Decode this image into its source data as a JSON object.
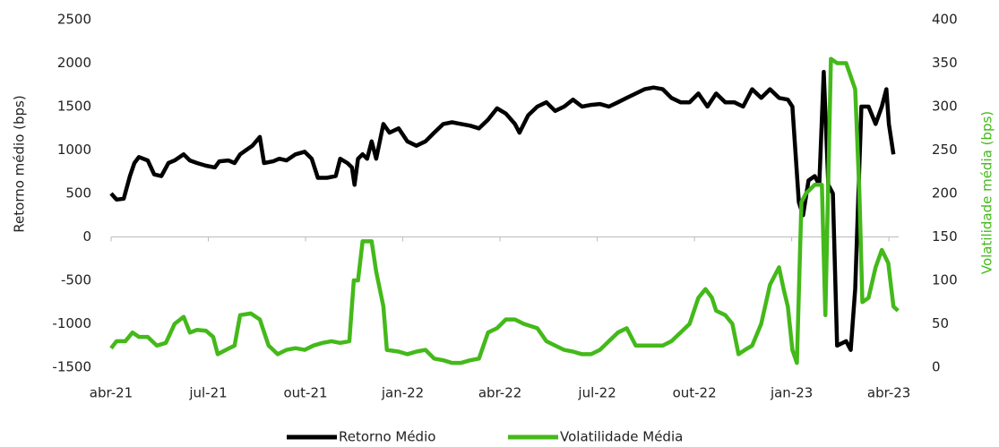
{
  "chart_data": {
    "type": "line",
    "y_label": "Retorno médio (bps)",
    "y2_label": "Volatilidade média (bps)",
    "xlim": [
      0,
      24.3
    ],
    "xticks": [
      {
        "value": 0,
        "label": "abr-21"
      },
      {
        "value": 3,
        "label": "jul-21"
      },
      {
        "value": 6,
        "label": "out-21"
      },
      {
        "value": 9,
        "label": "jan-22"
      },
      {
        "value": 12,
        "label": "abr-22"
      },
      {
        "value": 15,
        "label": "jul-22"
      },
      {
        "value": 18,
        "label": "out-22"
      },
      {
        "value": 21,
        "label": "jan-23"
      },
      {
        "value": 24,
        "label": "abr-23"
      }
    ],
    "ylim": [
      -1500,
      2500
    ],
    "yticks": [
      -1500,
      -1000,
      -500,
      0,
      500,
      1000,
      1500,
      2000,
      2500
    ],
    "y2lim": [
      0,
      400
    ],
    "y2ticks": [
      0,
      50,
      100,
      150,
      200,
      250,
      300,
      350,
      400
    ],
    "legend": "bottom",
    "series": [
      {
        "name": "Retorno Médio",
        "color": "#000000",
        "axis": "y",
        "x": [
          0,
          0.17,
          0.39,
          0.58,
          0.72,
          0.86,
          1.13,
          1.33,
          1.55,
          1.77,
          1.96,
          2.24,
          2.43,
          2.65,
          2.93,
          3.2,
          3.34,
          3.62,
          3.81,
          3.98,
          4.17,
          4.36,
          4.59,
          4.72,
          5.0,
          5.19,
          5.41,
          5.69,
          5.97,
          6.19,
          6.38,
          6.66,
          6.93,
          7.07,
          7.29,
          7.43,
          7.51,
          7.62,
          7.76,
          7.9,
          8.04,
          8.18,
          8.4,
          8.59,
          8.87,
          9.14,
          9.42,
          9.7,
          9.97,
          10.25,
          10.52,
          10.8,
          11.08,
          11.35,
          11.63,
          11.91,
          12.18,
          12.46,
          12.6,
          12.87,
          13.15,
          13.43,
          13.7,
          13.98,
          14.25,
          14.53,
          14.81,
          15.08,
          15.36,
          15.64,
          15.91,
          16.19,
          16.46,
          16.74,
          17.02,
          17.29,
          17.57,
          17.85,
          18.12,
          18.4,
          18.67,
          18.95,
          19.23,
          19.5,
          19.78,
          20.06,
          20.33,
          20.61,
          20.88,
          21.02,
          21.22,
          21.35,
          21.52,
          21.71,
          21.85,
          21.99,
          22.13,
          22.27,
          22.4,
          22.68,
          22.82,
          22.96,
          23.15,
          23.37,
          23.59,
          23.78,
          23.92,
          24.0,
          24.14
        ],
        "values": [
          500,
          430,
          440,
          700,
          850,
          920,
          880,
          720,
          700,
          850,
          880,
          950,
          880,
          850,
          820,
          800,
          870,
          880,
          850,
          950,
          1000,
          1050,
          1150,
          850,
          870,
          900,
          880,
          950,
          980,
          900,
          680,
          680,
          700,
          900,
          850,
          800,
          600,
          900,
          950,
          900,
          1100,
          900,
          1300,
          1200,
          1250,
          1100,
          1050,
          1100,
          1200,
          1300,
          1320,
          1300,
          1280,
          1250,
          1350,
          1480,
          1420,
          1300,
          1200,
          1400,
          1500,
          1550,
          1450,
          1500,
          1580,
          1500,
          1520,
          1530,
          1500,
          1550,
          1600,
          1650,
          1700,
          1720,
          1700,
          1600,
          1550,
          1550,
          1650,
          1500,
          1650,
          1550,
          1550,
          1500,
          1700,
          1600,
          1700,
          1600,
          1580,
          1500,
          400,
          250,
          650,
          700,
          600,
          1900,
          600,
          500,
          -1250,
          -1200,
          -1300,
          -600,
          1500,
          1500,
          1300,
          1500,
          1700,
          1300,
          950
        ]
      },
      {
        "name": "Volatilidade Média",
        "color": "#44b91a",
        "axis": "y2",
        "x": [
          0,
          0.17,
          0.44,
          0.66,
          0.86,
          1.13,
          1.41,
          1.69,
          1.96,
          2.24,
          2.43,
          2.65,
          2.93,
          3.15,
          3.29,
          3.54,
          3.81,
          3.98,
          4.31,
          4.59,
          4.86,
          5.14,
          5.41,
          5.69,
          5.97,
          6.24,
          6.52,
          6.8,
          7.07,
          7.35,
          7.49,
          7.62,
          7.76,
          8.04,
          8.18,
          8.4,
          8.51,
          8.87,
          9.14,
          9.42,
          9.7,
          9.97,
          10.25,
          10.52,
          10.8,
          11.08,
          11.35,
          11.63,
          11.91,
          12.18,
          12.46,
          12.73,
          13.15,
          13.43,
          13.7,
          13.98,
          14.25,
          14.53,
          14.81,
          15.08,
          15.36,
          15.64,
          15.91,
          16.19,
          16.46,
          16.74,
          17.02,
          17.29,
          17.57,
          17.85,
          18.12,
          18.34,
          18.54,
          18.67,
          18.95,
          19.17,
          19.36,
          19.56,
          19.78,
          20.06,
          20.33,
          20.61,
          20.75,
          20.88,
          21.02,
          21.16,
          21.3,
          21.44,
          21.71,
          21.93,
          22.04,
          22.21,
          22.4,
          22.68,
          22.96,
          23.09,
          23.18,
          23.37,
          23.59,
          23.78,
          23.98,
          24.14,
          24.28
        ],
        "values": [
          22,
          30,
          30,
          40,
          35,
          35,
          25,
          28,
          50,
          58,
          40,
          43,
          42,
          35,
          15,
          20,
          25,
          60,
          62,
          55,
          25,
          15,
          20,
          22,
          20,
          25,
          28,
          30,
          28,
          30,
          100,
          100,
          145,
          145,
          110,
          70,
          20,
          18,
          15,
          18,
          20,
          10,
          8,
          5,
          5,
          8,
          10,
          40,
          45,
          55,
          55,
          50,
          45,
          30,
          25,
          20,
          18,
          15,
          15,
          20,
          30,
          40,
          45,
          25,
          25,
          25,
          25,
          30,
          40,
          50,
          80,
          90,
          80,
          65,
          60,
          50,
          15,
          20,
          25,
          50,
          95,
          115,
          90,
          70,
          20,
          5,
          190,
          200,
          210,
          210,
          60,
          355,
          350,
          350,
          320,
          200,
          75,
          80,
          115,
          135,
          120,
          70,
          65
        ]
      }
    ]
  }
}
